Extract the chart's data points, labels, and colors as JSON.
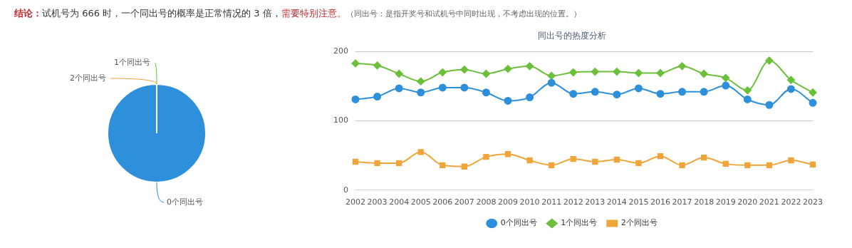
{
  "chart_data": [
    {
      "type": "pie",
      "annotations": [
        "结论：",
        "试机号为 666 时，一个同出号的概率是正常情况的 3 倍，",
        "需要特别注意。",
        "（同出号：是指开奖号和试机号中同时出现，不考虑出现的位置。）"
      ],
      "categories": [
        "0个同出号",
        "1个同出号",
        "2个同出号"
      ],
      "values": [
        100,
        0,
        0
      ],
      "colors": [
        "#2e8fdb",
        "#6bbf3a",
        "#f0a53a"
      ],
      "legend": false
    },
    {
      "type": "line",
      "title": "同出号的热度分析",
      "categories": [
        "2002",
        "2003",
        "2004",
        "2005",
        "2006",
        "2007",
        "2008",
        "2009",
        "2010",
        "2011",
        "2012",
        "2013",
        "2014",
        "2015",
        "2016",
        "2017",
        "2018",
        "2019",
        "2020",
        "2021",
        "2022",
        "2023"
      ],
      "series": [
        {
          "name": "0个同出号",
          "color": "#2e8fdb",
          "marker": "circle",
          "values": [
            131,
            135,
            147,
            141,
            148,
            148,
            141,
            129,
            134,
            155,
            139,
            142,
            138,
            147,
            139,
            142,
            142,
            151,
            131,
            123,
            146,
            126
          ]
        },
        {
          "name": "1个同出号",
          "color": "#6bbf3a",
          "marker": "diamond",
          "values": [
            183,
            180,
            168,
            157,
            170,
            174,
            168,
            175,
            179,
            165,
            170,
            171,
            171,
            169,
            169,
            179,
            168,
            162,
            144,
            187,
            159,
            141
          ]
        },
        {
          "name": "2个同出号",
          "color": "#f0a53a",
          "marker": "square",
          "values": [
            41,
            39,
            39,
            55,
            36,
            34,
            48,
            52,
            43,
            36,
            45,
            41,
            44,
            39,
            49,
            36,
            47,
            38,
            36,
            36,
            43,
            37
          ]
        }
      ],
      "ylim": [
        0,
        200
      ],
      "yticks": [
        0,
        100,
        200
      ],
      "grid": "y",
      "legend": "bottom"
    }
  ]
}
